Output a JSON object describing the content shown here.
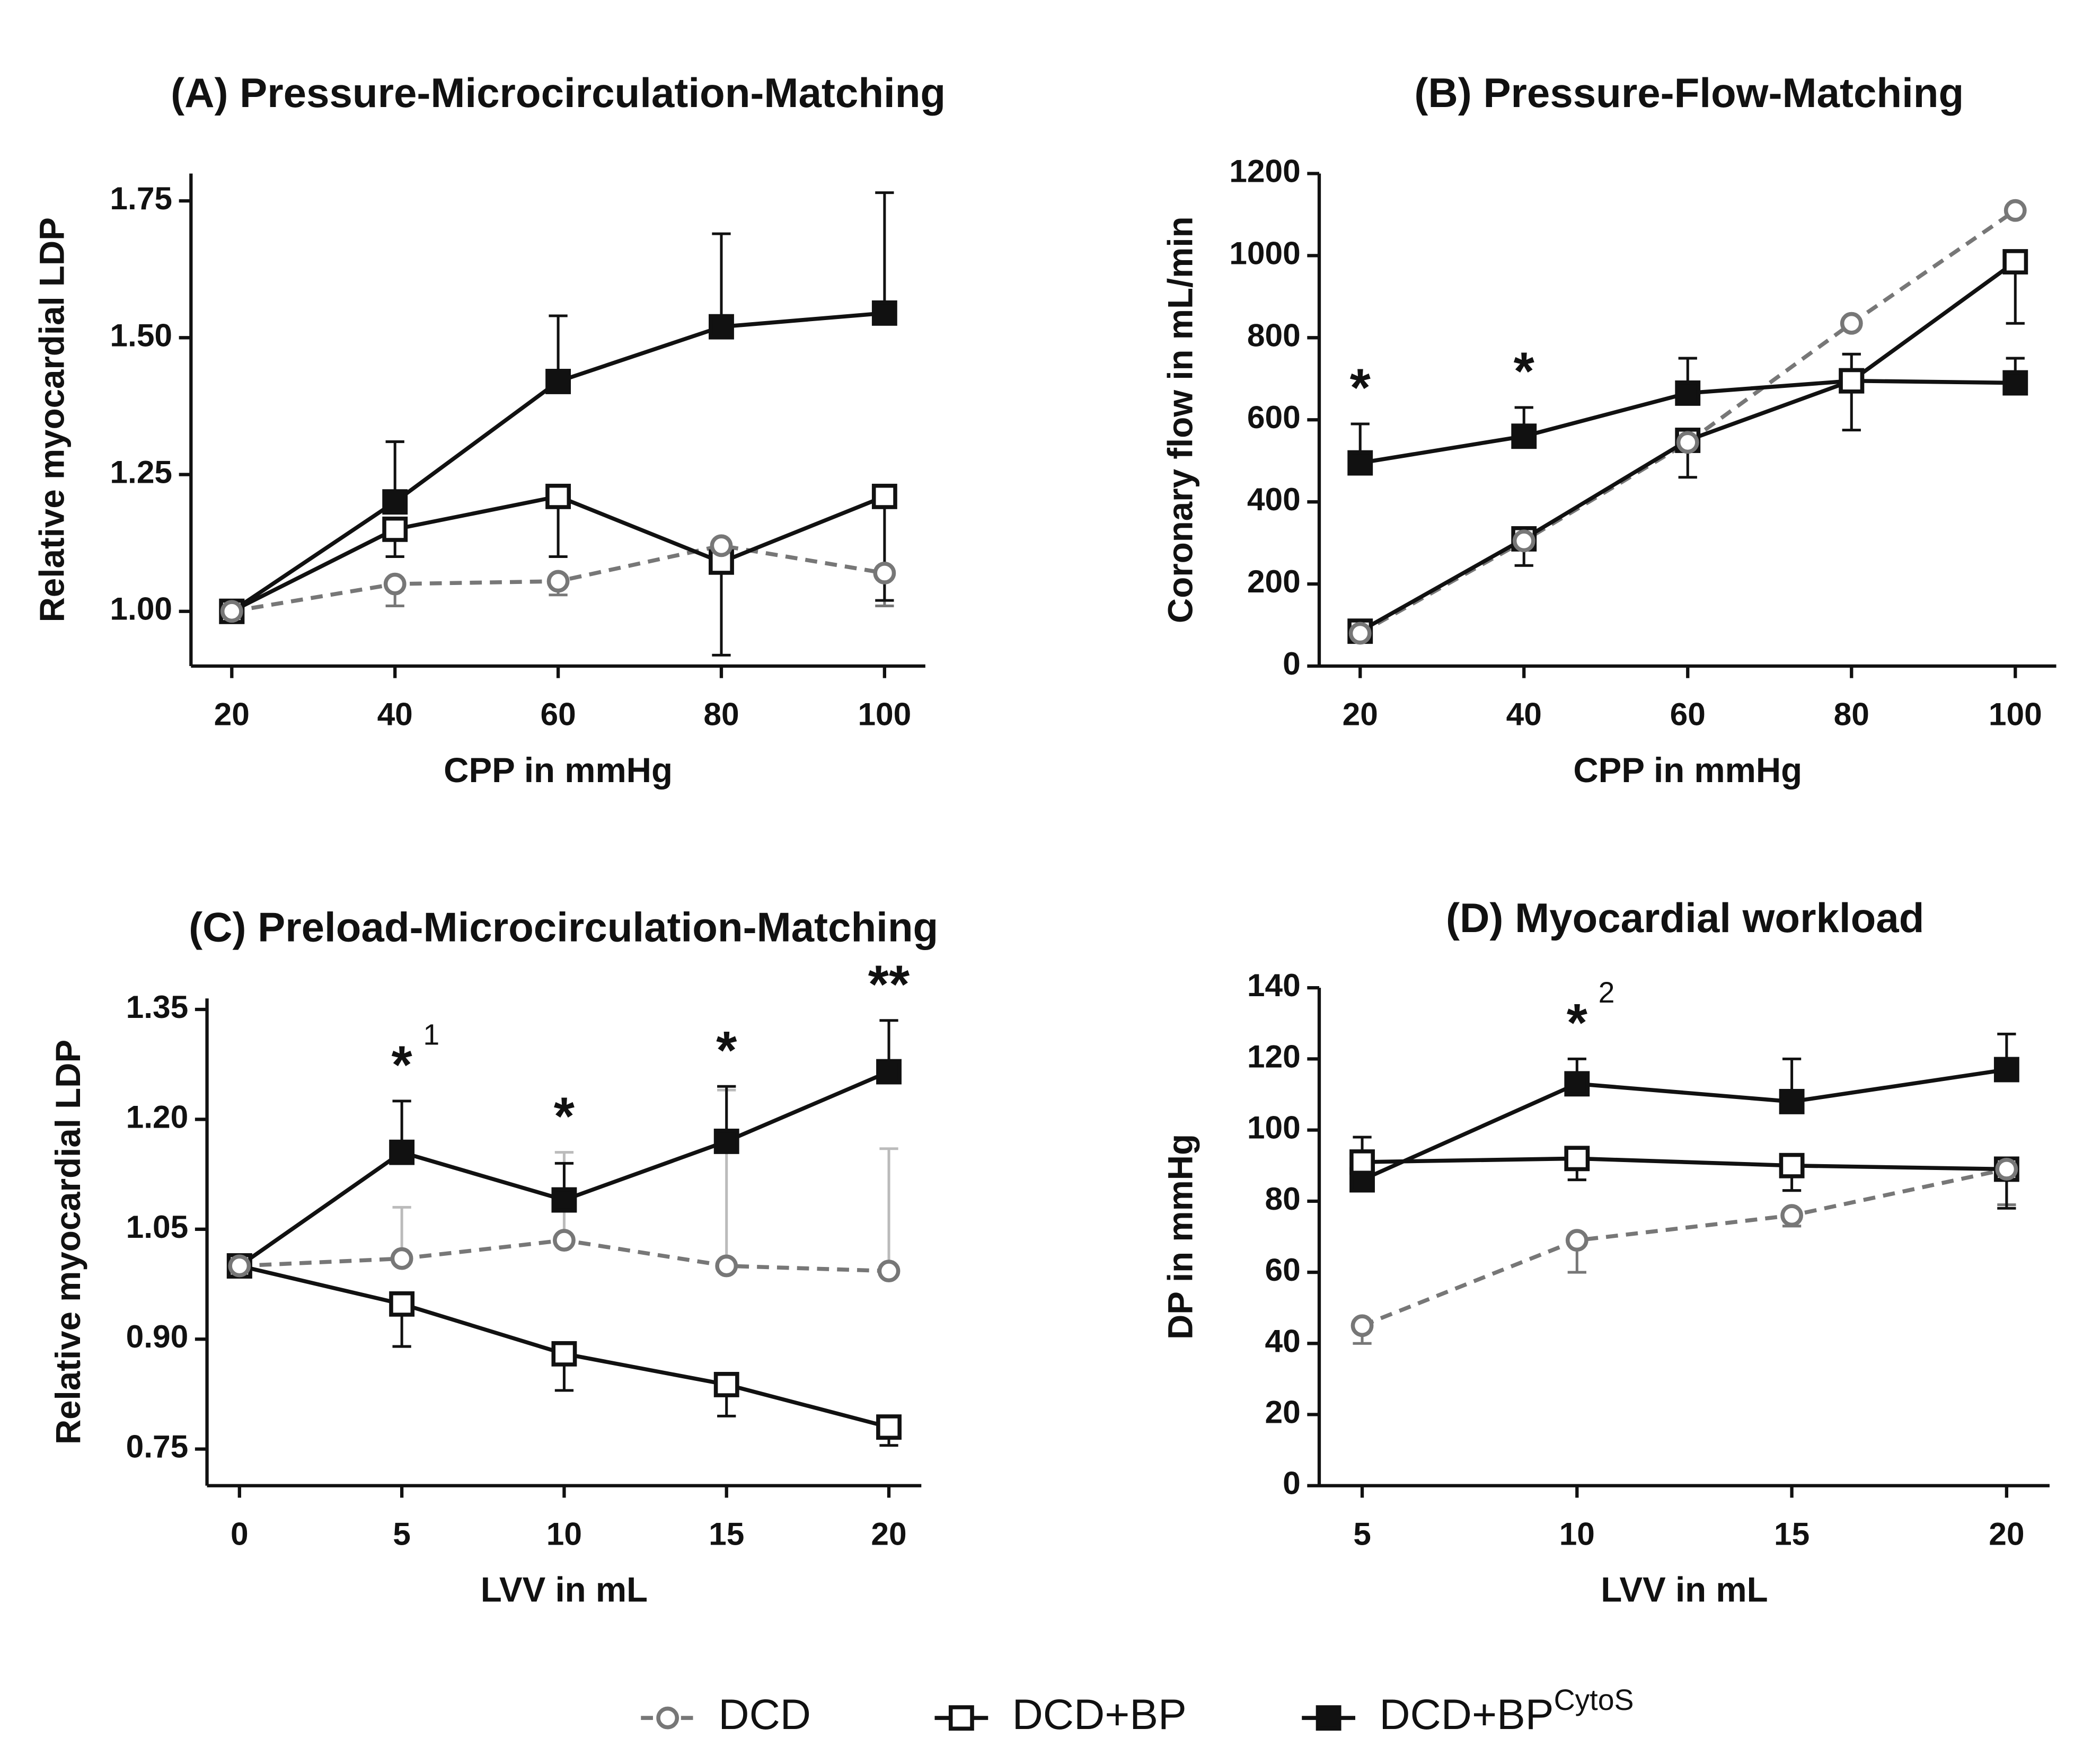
{
  "charts": [
    {
      "type": "line",
      "title": "(A) Pressure-Microcirculation-Matching",
      "xlabel": "CPP in mmHg",
      "ylabel": "Relative myocardial LDP",
      "x": [
        20,
        40,
        60,
        80,
        100
      ],
      "xlim": [
        15,
        105
      ],
      "xticks": [
        20,
        40,
        60,
        80,
        100
      ],
      "ylim": [
        0.9,
        1.8
      ],
      "yticks": [
        {
          "value": 1,
          "label": "1.00"
        },
        {
          "value": 1.25,
          "label": "1.25"
        },
        {
          "value": 1.5,
          "label": "1.50"
        },
        {
          "value": 1.75,
          "label": "1.75"
        }
      ],
      "series": [
        {
          "values": [
            1.0,
            1.05,
            1.055,
            1.12,
            1.07
          ],
          "errors": [
            null,
            0.04,
            0.025,
            null,
            0.06
          ],
          "error_direction": "down",
          "color": "#777777",
          "marker": "circle",
          "dash": true
        },
        {
          "values": [
            1.0,
            1.15,
            1.21,
            1.09,
            1.21
          ],
          "errors": [
            null,
            0.05,
            0.11,
            0.17,
            0.19
          ],
          "error_direction": "down",
          "color": "#111111",
          "marker": "square-open",
          "dash": false
        },
        {
          "values": [
            1.0,
            1.2,
            1.42,
            1.52,
            1.545
          ],
          "errors": [
            null,
            0.11,
            0.12,
            0.17,
            0.22
          ],
          "error_direction": "up",
          "color": "#111111",
          "marker": "square-filled",
          "dash": false
        }
      ],
      "annotations": []
    },
    {
      "type": "line",
      "title": "(B) Pressure-Flow-Matching",
      "xlabel": "CPP in mmHg",
      "ylabel": "Coronary flow in mL/min",
      "x": [
        20,
        40,
        60,
        80,
        100
      ],
      "xlim": [
        15,
        105
      ],
      "xticks": [
        20,
        40,
        60,
        80,
        100
      ],
      "ylim": [
        0,
        1200
      ],
      "yticks": [
        0,
        200,
        400,
        600,
        800,
        1000,
        1200
      ],
      "series": [
        {
          "values": [
            80,
            305,
            545,
            835,
            1110
          ],
          "errors": [
            null,
            null,
            null,
            null,
            null
          ],
          "error_direction": "down",
          "color": "#777777",
          "marker": "circle",
          "dash": true
        },
        {
          "values": [
            85,
            310,
            550,
            695,
            985
          ],
          "errors": [
            20,
            65,
            90,
            120,
            150
          ],
          "error_direction": "down",
          "color": "#111111",
          "marker": "square-open",
          "dash": false
        },
        {
          "values": [
            495,
            560,
            665,
            695,
            690
          ],
          "errors": [
            95,
            70,
            85,
            65,
            60
          ],
          "error_direction": "up",
          "color": "#111111",
          "marker": "square-filled",
          "dash": false
        }
      ],
      "annotations": [
        {
          "x": 20,
          "text": "*"
        },
        {
          "x": 40,
          "text": "*"
        }
      ]
    },
    {
      "type": "line",
      "title": "(C) Preload-Microcirculation-Matching",
      "xlabel": "LVV in mL",
      "ylabel": "Relative myocardial LDP",
      "x": [
        0,
        5,
        10,
        15,
        20
      ],
      "xlim": [
        -1,
        21
      ],
      "xticks": [
        0,
        5,
        10,
        15,
        20
      ],
      "ylim": [
        0.7,
        1.365
      ],
      "yticks": [
        {
          "value": 0.75,
          "label": "0.75"
        },
        {
          "value": 0.9,
          "label": "0.90"
        },
        {
          "value": 1.05,
          "label": "1.05"
        },
        {
          "value": 1.2,
          "label": "1.20"
        },
        {
          "value": 1.35,
          "label": "1.35"
        }
      ],
      "series": [
        {
          "values": [
            1.0,
            1.01,
            1.035,
            1.0,
            0.993
          ],
          "errors": [
            null,
            0.07,
            0.12,
            0.24,
            0.167
          ],
          "error_direction": "up",
          "color": "#777777",
          "error_color": "#bbbbbb",
          "marker": "circle",
          "dash": true
        },
        {
          "values": [
            1.0,
            0.948,
            0.88,
            0.838,
            0.78
          ],
          "errors": [
            null,
            0.058,
            0.05,
            0.043,
            0.025
          ],
          "error_direction": "down",
          "color": "#111111",
          "marker": "square-open",
          "dash": false
        },
        {
          "values": [
            1.0,
            1.155,
            1.09,
            1.17,
            1.265
          ],
          "errors": [
            null,
            0.07,
            0.05,
            0.075,
            0.07
          ],
          "error_direction": "up",
          "color": "#111111",
          "marker": "square-filled",
          "dash": false
        }
      ],
      "annotations": [
        {
          "x": 5,
          "text": "*",
          "sup": "1"
        },
        {
          "x": 10,
          "text": "*"
        },
        {
          "x": 15,
          "text": "*"
        },
        {
          "x": 20,
          "text": "**"
        }
      ]
    },
    {
      "type": "line",
      "title": "(D) Myocardial workload",
      "xlabel": "LVV in mL",
      "ylabel": "DP in mmHg",
      "x": [
        5,
        10,
        15,
        20
      ],
      "xlim": [
        4,
        21
      ],
      "xticks": [
        5,
        10,
        15,
        20
      ],
      "ylim": [
        0,
        140
      ],
      "yticks": [
        0,
        20,
        40,
        60,
        80,
        100,
        120,
        140
      ],
      "series": [
        {
          "values": [
            45,
            69,
            76,
            89
          ],
          "errors": [
            5,
            9,
            3,
            10
          ],
          "error_direction": "down",
          "color": "#777777",
          "marker": "circle",
          "dash": true
        },
        {
          "values": [
            91,
            92,
            90,
            89
          ],
          "errors": [
            null,
            6,
            7,
            11
          ],
          "error_direction": "down",
          "color": "#111111",
          "marker": "square-open",
          "dash": false
        },
        {
          "values": [
            86,
            113,
            108,
            117
          ],
          "errors": [
            12,
            7,
            12,
            10
          ],
          "error_direction": "up",
          "color": "#111111",
          "marker": "square-filled",
          "dash": false
        }
      ],
      "annotations": [
        {
          "x": 10,
          "text": "*",
          "sup": "2"
        }
      ]
    }
  ],
  "legend": [
    {
      "name": "DCD",
      "color": "#777777",
      "marker": "circle",
      "dash": true
    },
    {
      "name": "DCD+BP",
      "color": "#111111",
      "marker": "square-open",
      "dash": false
    },
    {
      "name": "DCD+BP",
      "sup": "CytoS",
      "color": "#111111",
      "marker": "square-filled",
      "dash": false
    }
  ]
}
